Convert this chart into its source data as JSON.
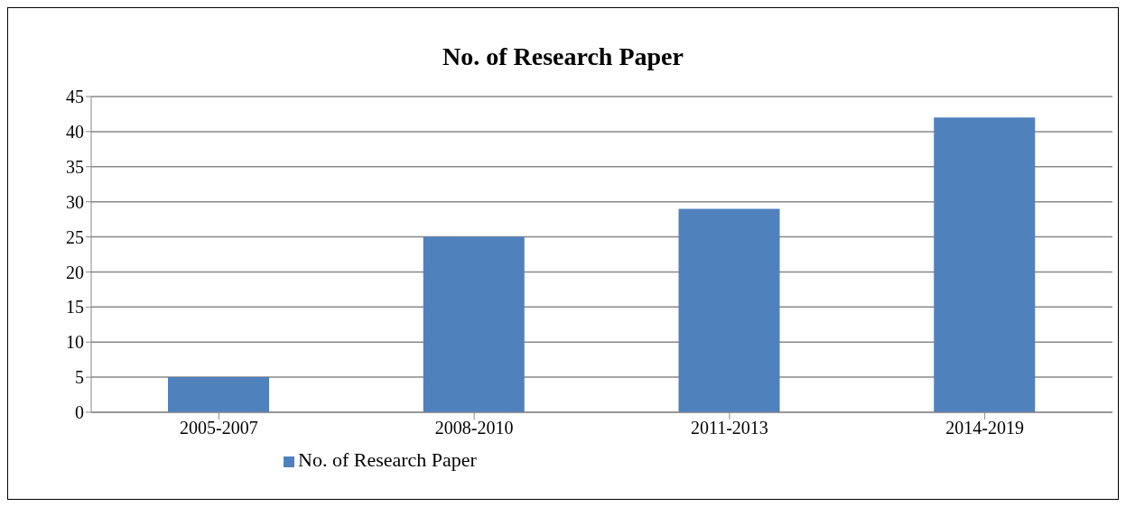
{
  "chart_data": {
    "type": "bar",
    "title": "No. of Research Paper",
    "categories": [
      "2005-2007",
      "2008-2010",
      "2011-2013",
      "2014-2019"
    ],
    "series": [
      {
        "name": "No. of Research Paper",
        "color": "#4f81bd",
        "values": [
          5,
          25,
          29,
          42
        ]
      }
    ],
    "ylim": [
      0,
      45
    ],
    "yticks": [
      0,
      5,
      10,
      15,
      20,
      25,
      30,
      35,
      40,
      45
    ],
    "grid": "y",
    "legend": "bottom"
  }
}
